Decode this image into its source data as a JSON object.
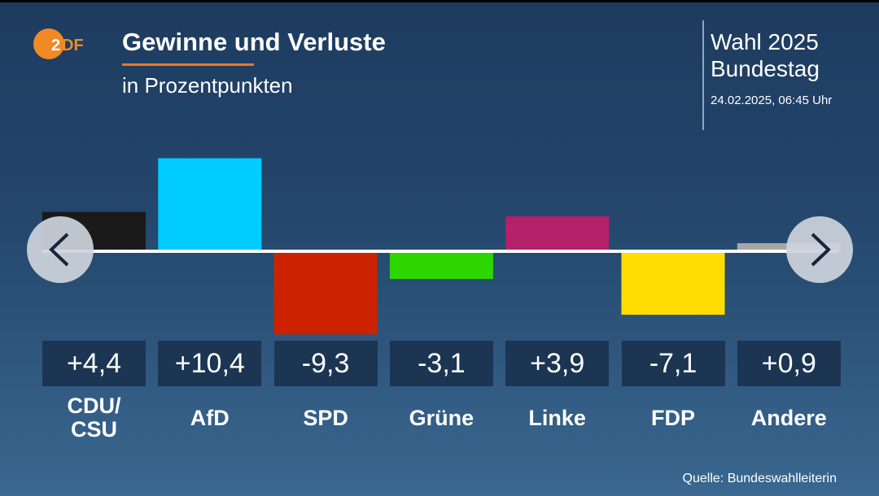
{
  "header": {
    "title": "Gewinne und Verluste",
    "subtitle": "in Prozentpunkten",
    "logo_text": "ZDF",
    "election": "Wahl 2025",
    "body": "Bundestag",
    "timestamp": "24.02.2025, 06:45 Uhr"
  },
  "source": "Quelle: Bundeswahlleiterin",
  "colors": {
    "accent": "#e8782a"
  },
  "navigation": {
    "prev_icon": "chevron-left-icon",
    "next_icon": "chevron-right-icon"
  },
  "chart_data": {
    "type": "bar",
    "title": "Gewinne und Verluste",
    "subtitle": "in Prozentpunkten",
    "categories": [
      "CDU/\nCSU",
      "AfD",
      "SPD",
      "Grüne",
      "Linke",
      "FDP",
      "Andere"
    ],
    "values": [
      4.4,
      10.4,
      -9.3,
      -3.1,
      3.9,
      -7.1,
      0.9
    ],
    "labels": [
      "+4,4",
      "+10,4",
      "-9,3",
      "-3,1",
      "+3,9",
      "-7,1",
      "+0,9"
    ],
    "colors": [
      "#1a1a1a",
      "#00ccff",
      "#cc2200",
      "#2ed600",
      "#b5206a",
      "#ffdd00",
      "#a6a6a6"
    ],
    "ylim": [
      -9.3,
      10.4
    ],
    "grid": false
  }
}
